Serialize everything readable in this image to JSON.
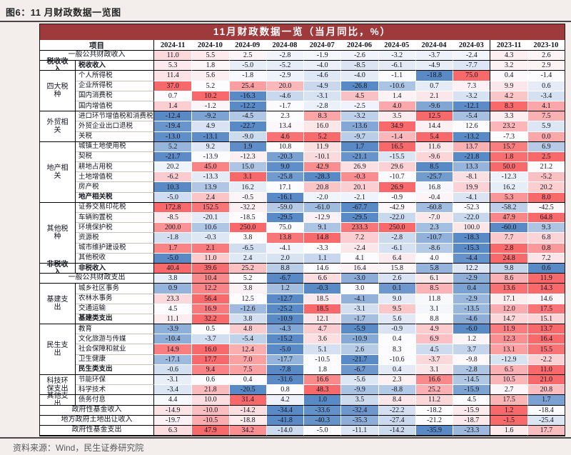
{
  "figure": {
    "title": "图6：11 月财政数据一览图",
    "source": "资料来源：Wind，民生证券研究院"
  },
  "chart_data": {
    "type": "heatmap",
    "title": "11月财政数据一览（当月同比，%）",
    "unit": "%",
    "item_header": "项目",
    "columns": [
      "2024-11",
      "2024-10",
      "2024-09",
      "2024-08",
      "2024-07",
      "2024-06",
      "2024-05",
      "2024-04",
      "2024-03",
      "2023-11",
      "2023-10"
    ],
    "colors": {
      "high": "#F8696B",
      "mid": "#FCFCFF",
      "low": "#5A8AC6",
      "header_bg": "#9E3A3C"
    },
    "rows": [
      {
        "merged": true,
        "label": "一般公共财政收入",
        "end": true,
        "scale": [
          -40,
          0,
          45
        ],
        "values": [
          11.0,
          5.5,
          2.5,
          -2.8,
          -1.9,
          -2.6,
          -3.2,
          -3.7,
          -2.4,
          4.3,
          2.6
        ]
      },
      {
        "group": "税收收入",
        "span": 1,
        "gbold": true,
        "bold": true,
        "label": "税收收入",
        "end": true,
        "scale": [
          -40,
          0,
          45
        ],
        "values": [
          5.3,
          1.8,
          -5.0,
          -5.2,
          -4.0,
          -8.5,
          -6.1,
          -4.9,
          -7.7,
          3.2,
          2.9
        ]
      },
      {
        "group": "四大税种",
        "span": 4,
        "label": "个人所得税",
        "values": [
          11.4,
          5.6,
          -1.8,
          -2.9,
          -4.6,
          -4.0,
          -1.1,
          -18.8,
          75.0,
          0.4,
          -1.4
        ]
      },
      {
        "label": "企业所得税",
        "values": [
          37.0,
          5.2,
          25.4,
          20.0,
          -4.9,
          -26.8,
          -10.6,
          0.7,
          7.3,
          9.9,
          0.6
        ]
      },
      {
        "label": "国内消费税",
        "values": [
          0.7,
          10.2,
          -16.3,
          -4.6,
          -3.1,
          4.5,
          1.4,
          2.1,
          -3.2,
          4.2,
          -3.4
        ]
      },
      {
        "label": "国内增值税",
        "end": true,
        "values": [
          1.4,
          -1.2,
          -12.2,
          -1.7,
          -2.8,
          -2.5,
          4.0,
          -9.6,
          -12.1,
          8.3,
          4.1
        ]
      },
      {
        "group": "外贸相关",
        "span": 3,
        "label": "进口环节增值税和消费税",
        "values": [
          -12.4,
          -9.2,
          -4.5,
          2.3,
          8.3,
          -3.2,
          3.5,
          12.5,
          -5.4,
          3.3,
          7.5
        ]
      },
      {
        "label": "外贸企业出口退税",
        "values": [
          -19.4,
          4.9,
          -22.7,
          13.4,
          16.0,
          -13.6,
          34.9,
          14.4,
          12.6,
          23.2,
          5.9
        ]
      },
      {
        "label": "关税",
        "end": true,
        "values": [
          -13.0,
          -13.1,
          -9.0,
          4.6,
          5.2,
          -9.7,
          -1.4,
          5.4,
          -13.2,
          -7.3,
          0.0
        ]
      },
      {
        "group": "地产相关",
        "span": 6,
        "label": "城镇土地使用税",
        "values": [
          5.2,
          9.2,
          1.9,
          10.8,
          11.9,
          1.7,
          16.5,
          11.6,
          13.7,
          15.7,
          6.9
        ]
      },
      {
        "label": "契税",
        "values": [
          -21.7,
          -13.9,
          -12.3,
          -20.3,
          -10.1,
          -21.1,
          -15.5,
          -9.6,
          -21.8,
          1.8,
          2.5
        ]
      },
      {
        "label": "耕地占用税",
        "values": [
          20.2,
          45.0,
          15.0,
          9.0,
          42.9,
          26.9,
          29.6,
          8.5,
          13.3,
          50.0,
          21.2
        ]
      },
      {
        "label": "土地增值税",
        "values": [
          -6.2,
          -13.3,
          3.1,
          -25.8,
          -28.3,
          -0.3,
          -10.7,
          -25.7,
          -8.1,
          -12.3,
          -5.2
        ]
      },
      {
        "label": "房产税",
        "values": [
          10.3,
          13.9,
          16.2,
          17.1,
          20.8,
          20.1,
          26.9,
          16.8,
          19.9,
          16.2,
          20.2
        ]
      },
      {
        "label": "地产相关税",
        "bold": true,
        "end": true,
        "values": [
          -5.0,
          2.4,
          -0.5,
          -16.1,
          -2.0,
          -2.1,
          -0.9,
          -0.4,
          -4.1,
          5.3,
          8.0
        ]
      },
      {
        "group": "其他税种",
        "span": 6,
        "label": "证券交易印花税",
        "values": [
          172.8,
          152.5,
          -32.2,
          -59.0,
          -61.0,
          -67.7,
          -42.9,
          -60.8,
          -52.3,
          -58.2,
          -42.5
        ]
      },
      {
        "label": "车辆购置税",
        "values": [
          -8.5,
          -20.1,
          -18.5,
          -29.5,
          -12.9,
          -29.5,
          -22.0,
          -7.0,
          -22.0,
          47.9,
          64.8
        ]
      },
      {
        "label": "环境保护税",
        "values": [
          200.0,
          10.6,
          250.0,
          75.0,
          9.1,
          233.3,
          250.0,
          2.3,
          100.0,
          -60.0,
          9.3
        ]
      },
      {
        "label": "资源税",
        "values": [
          -1.8,
          -0.3,
          3.8,
          13.8,
          14.8,
          7.2,
          -2.8,
          -10.7,
          -18.3,
          7.7,
          6.8
        ]
      },
      {
        "label": "城市维护建设税",
        "values": [
          1.7,
          2.1,
          -6.5,
          -4.1,
          -3.3,
          -2.4,
          -6.1,
          -8.6,
          -15.3,
          2.8,
          0.8
        ]
      },
      {
        "label": "其他税收",
        "end": true,
        "values": [
          -5.0,
          11.0,
          2.4,
          2.0,
          1.1,
          4.1,
          6.4,
          4.0,
          -4.4,
          24.8,
          7.2
        ]
      },
      {
        "group": "非税收入",
        "span": 1,
        "gbold": true,
        "bold": true,
        "label": "非税收入",
        "end": true,
        "values": [
          40.4,
          39.6,
          25.2,
          8.8,
          14.6,
          16.4,
          15.8,
          5.8,
          12.2,
          9.8,
          0.6
        ]
      },
      {
        "merged": true,
        "label": "一般公共财政支出",
        "end": true,
        "values": [
          3.8,
          10.4,
          5.2,
          -6.7,
          6.6,
          -3.0,
          2.6,
          6.1,
          -2.9,
          8.6,
          11.9
        ]
      },
      {
        "group": "基建支出",
        "span": 4,
        "label": "城乡社区事务",
        "values": [
          0.9,
          12.2,
          3.8,
          1.2,
          -0.3,
          3.0,
          0.1,
          8.5,
          0.4,
          13.6,
          14.3
        ]
      },
      {
        "label": "农林水事务",
        "values": [
          23.3,
          56.4,
          12.5,
          -12.7,
          18.5,
          -4.1,
          9.0,
          11.8,
          -2.9,
          17.1,
          14.6
        ]
      },
      {
        "label": "交通运输",
        "values": [
          4.5,
          16.9,
          -12.6,
          -25.2,
          18.5,
          -3.1,
          9.5,
          3.1,
          -13.5,
          12.0,
          17.5
        ]
      },
      {
        "label": "基建类支出",
        "bold": true,
        "end": true,
        "values": [
          11.1,
          32.2,
          3.8,
          -10.9,
          12.1,
          -1.7,
          5.6,
          8.8,
          -4.6,
          14.7,
          15.1
        ]
      },
      {
        "group": "民生支出",
        "span": 5,
        "label": "教育",
        "values": [
          -3.9,
          0.5,
          4.8,
          -4.3,
          4.7,
          -5.9,
          -0.9,
          4.9,
          -6.0,
          11.9,
          13.7
        ]
      },
      {
        "label": "文化旅游与传媒",
        "values": [
          -10.4,
          -3.7,
          -5.4,
          -15.2,
          3.6,
          -10.9,
          0.4,
          6.9,
          1.2,
          12.3,
          16.4
        ]
      },
      {
        "label": "社会保障和就业",
        "values": [
          14.9,
          16.0,
          12.4,
          -5.0,
          5.1,
          2.6,
          8.3,
          4.5,
          3.7,
          13.1,
          15.5
        ]
      },
      {
        "label": "卫生健康",
        "values": [
          -17.1,
          17.7,
          7.0,
          -17.7,
          -10.5,
          -21.7,
          -10.6,
          -3.7,
          -9.8,
          -12.9,
          -2.2
        ]
      },
      {
        "label": "民生类支出",
        "bold": true,
        "end": true,
        "values": [
          -0.6,
          9.4,
          7.5,
          -7.8,
          1.8,
          -6.7,
          0.4,
          3.1,
          -2.8,
          6.5,
          11.0
        ]
      },
      {
        "group": "科技环保支出",
        "span": 2,
        "label": "节能环保",
        "values": [
          -3.1,
          0.6,
          0.4,
          -31.6,
          16.6,
          -5.6,
          2.3,
          16.6,
          -14.5,
          10.5,
          21.0
        ]
      },
      {
        "label": "科学技术",
        "end": true,
        "values": [
          -3.4,
          21.8,
          -20.5,
          0.8,
          48.3,
          -9.9,
          -8.8,
          25.2,
          -15.9,
          2.7,
          20.8
        ]
      },
      {
        "group": "其他支出",
        "span": 1,
        "label": "债务付息",
        "end": true,
        "values": [
          4.4,
          10.0,
          31.4,
          4.2,
          1.0,
          3.5,
          8.4,
          11.2,
          4.5,
          17.5,
          1.7
        ]
      },
      {
        "merged": true,
        "label": "政府性基金收入",
        "end": true,
        "values": [
          -14.9,
          -10.0,
          -14.2,
          -34.4,
          -33.6,
          -32.4,
          -22.2,
          -18.2,
          -15.9,
          1.2,
          -18.4
        ]
      },
      {
        "merged": true,
        "label": "地方政府土地出让收入",
        "end": true,
        "values": [
          -19.7,
          -10.5,
          -18.8,
          -41.8,
          -40.3,
          -35.3,
          -27.4,
          -21.2,
          -18.7,
          -1.5,
          -25.4
        ]
      },
      {
        "merged": true,
        "label": "政府性基金支出",
        "end": true,
        "values": [
          6.3,
          47.9,
          34.2,
          -14.0,
          -5.0,
          -11.1,
          -14.2,
          -35.9,
          -23.3,
          1.6,
          17.7
        ]
      }
    ]
  }
}
